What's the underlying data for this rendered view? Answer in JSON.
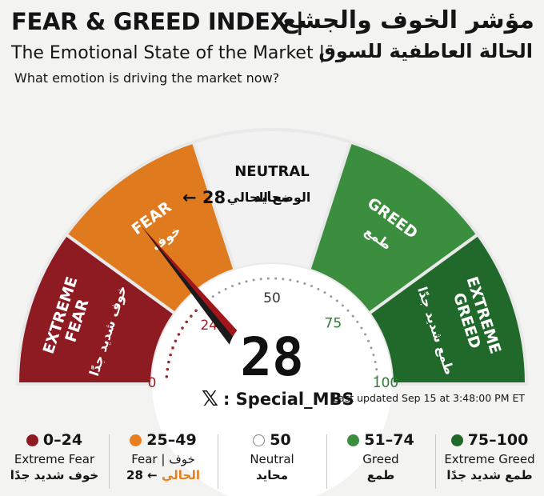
{
  "header": {
    "title_en": "FEAR & GREED INDEX |",
    "title_ar": "مؤشر الخوف والجشع",
    "subtitle_en": "The Emotional State of the Market |",
    "subtitle_ar": "الحالة العاطفية للسوق",
    "question": "What emotion is driving the market now?"
  },
  "gauge": {
    "value": 28,
    "min": 0,
    "max": 100,
    "value_label": "28",
    "current_marker": "← 28",
    "current_label_ar": "الوضع الحالي",
    "ticks": [
      "0",
      "24",
      "50",
      "75",
      "100"
    ],
    "segments": [
      {
        "label_en": "EXTREME FEAR",
        "label_ar": "خوف شديد جدًا",
        "color": "#8e1a22"
      },
      {
        "label_en": "FEAR",
        "label_ar": "خوف",
        "color": "#df7b1e"
      },
      {
        "label_en": "NEUTRAL",
        "label_ar": "محايد",
        "color": "#f2f2f2"
      },
      {
        "label_en": "GREED",
        "label_ar": "طمع",
        "color": "#3c8e3f"
      },
      {
        "label_en": "EXTREME GREED",
        "label_ar": "طمع شديد جدًا",
        "color": "#21692b"
      }
    ],
    "needle_color": "#a0161b"
  },
  "footer": {
    "x_logo": "𝕏",
    "handle": ": Special_MBS",
    "last_updated": "Last updated Sep 15 at 3:48:00 PM ET"
  },
  "legend": [
    {
      "range": "0–24",
      "line1": "Extreme Fear",
      "line2": "خوف شديد جدًا",
      "color": "#8e1a22"
    },
    {
      "range": "25–49",
      "line1": "Fear | خوف",
      "line2_value": "28",
      "line2_arrow": "←",
      "line2_ar": "الحالي",
      "color": "#e67f1c"
    },
    {
      "range": "50",
      "line1": "Neutral",
      "line2": "محايد",
      "color": "#ffffff"
    },
    {
      "range": "51–74",
      "line1": "Greed",
      "line2": "طمع",
      "color": "#3c8e3f"
    },
    {
      "range": "75–100",
      "line1": "Extreme Greed",
      "line2": "طمع شديد جدًا",
      "color": "#21692b"
    }
  ]
}
